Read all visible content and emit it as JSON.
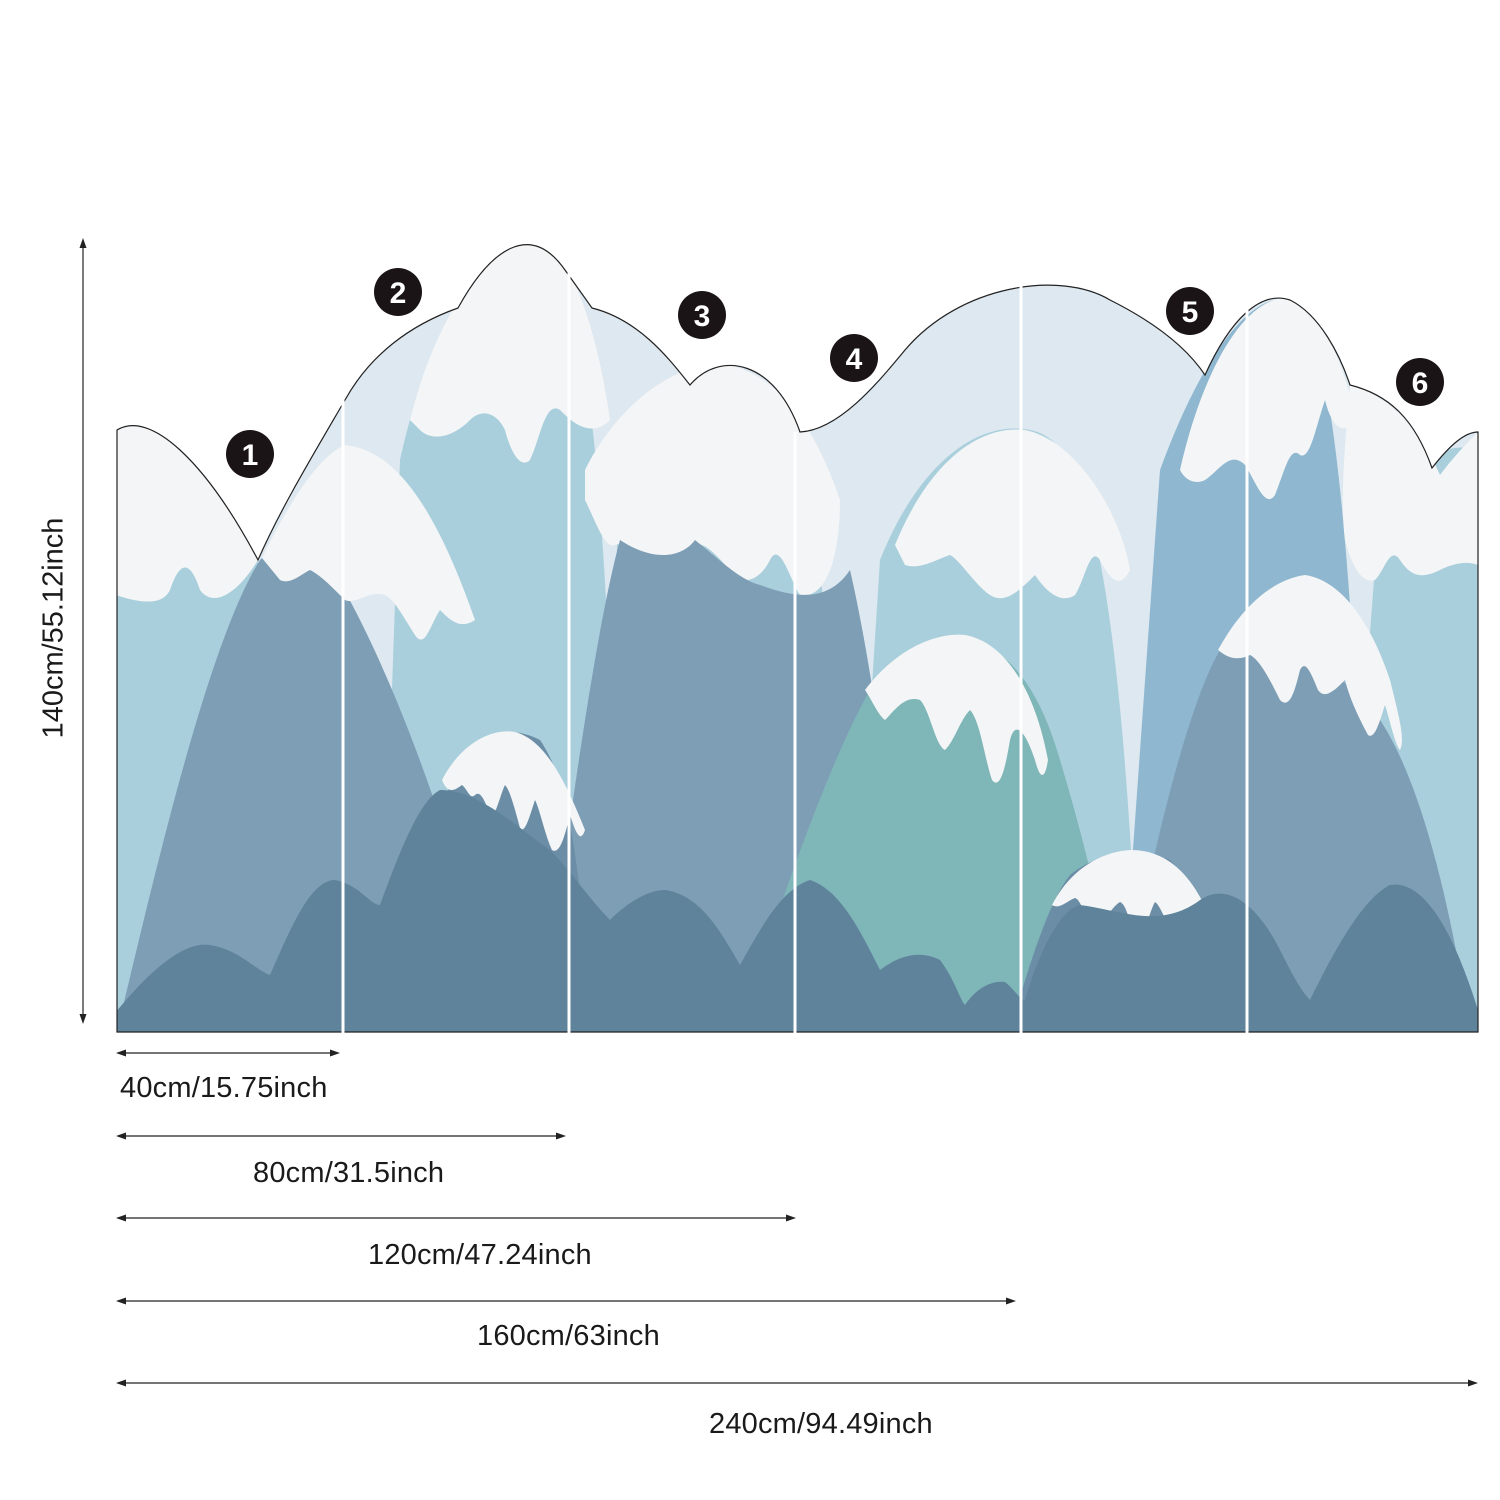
{
  "panel_numbers": [
    "1",
    "2",
    "3",
    "4",
    "5",
    "6"
  ],
  "dimensions": {
    "height": "140cm/55.12inch",
    "widths": [
      "40cm/15.75inch",
      "80cm/31.5inch",
      "120cm/47.24inch",
      "160cm/63inch",
      "240cm/94.49inch"
    ]
  },
  "colors": {
    "sky": "#dde8f0",
    "snow": "#f4f5f6",
    "light_blue": "#a9cfdc",
    "mid_blue": "#8fb8d0",
    "steel_blue": "#7d9eb5",
    "slate": "#6b8da6",
    "teal": "#7fb6b8",
    "dark_front": "#5e839b",
    "badge": "#1b1416"
  }
}
